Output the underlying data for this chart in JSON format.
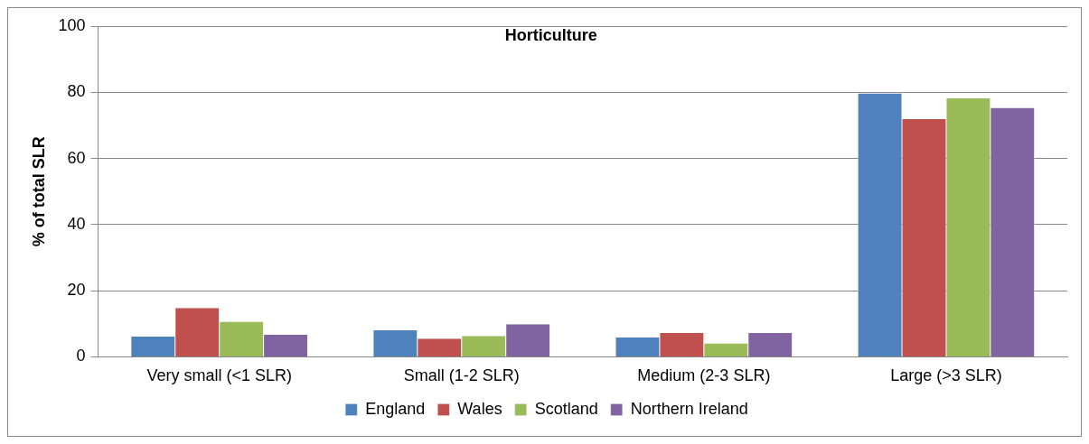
{
  "chart_data": {
    "type": "bar",
    "title": "Horticulture",
    "ylabel": "% of total SLR",
    "categories": [
      "Very small (<1 SLR)",
      "Small (1-2 SLR)",
      "Medium (2-3 SLR)",
      "Large (>3 SLR)"
    ],
    "series": [
      {
        "name": "England",
        "color": "#4f81bd",
        "values": [
          6.1,
          8.0,
          5.9,
          79.7
        ]
      },
      {
        "name": "Wales",
        "color": "#c0504d",
        "values": [
          14.8,
          5.5,
          7.2,
          71.9
        ]
      },
      {
        "name": "Scotland",
        "color": "#9bbb59",
        "values": [
          10.6,
          6.3,
          4.1,
          78.2
        ]
      },
      {
        "name": "Northern Ireland",
        "color": "#8064a2",
        "values": [
          6.7,
          9.9,
          7.2,
          75.3
        ]
      }
    ],
    "ylim": [
      0,
      100
    ],
    "yticks": [
      0,
      20,
      40,
      60,
      80,
      100
    ],
    "grid": "y",
    "legend": "bottom"
  }
}
